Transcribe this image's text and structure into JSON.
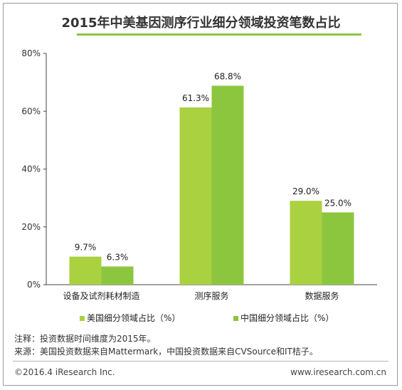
{
  "chart_data": {
    "type": "bar",
    "title": "2015年中美基因测序行业细分领域投资笔数占比",
    "categories": [
      "设备及试剂耗材制造",
      "测序服务",
      "数据服务"
    ],
    "series": [
      {
        "name": "美国细分领域占比（%）",
        "values": [
          9.7,
          61.3,
          29.0
        ],
        "labels": [
          "9.7%",
          "61.3%",
          "29.0%"
        ],
        "color": "#a9d140"
      },
      {
        "name": "中国细分领域占比（%）",
        "values": [
          6.3,
          68.8,
          25.0
        ],
        "labels": [
          "6.3%",
          "68.8%",
          "25.0%"
        ],
        "color": "#8cc63f"
      }
    ],
    "ylim": [
      0,
      80
    ],
    "yticks": [
      0,
      20,
      40,
      60,
      80
    ],
    "ytick_labels": [
      "0%",
      "20%",
      "40%",
      "60%",
      "80%"
    ],
    "grid": false,
    "legend_position": "bottom"
  },
  "notes": {
    "note1": "注释：投资数据时间维度为2015年。",
    "note2": "来源：美国投资数据来自Mattermark，中国投资数据来自CVSource和IT桔子。"
  },
  "footer": {
    "left": "©2016.4 iResearch Inc.",
    "right": "www.iresearch.com.cn"
  }
}
